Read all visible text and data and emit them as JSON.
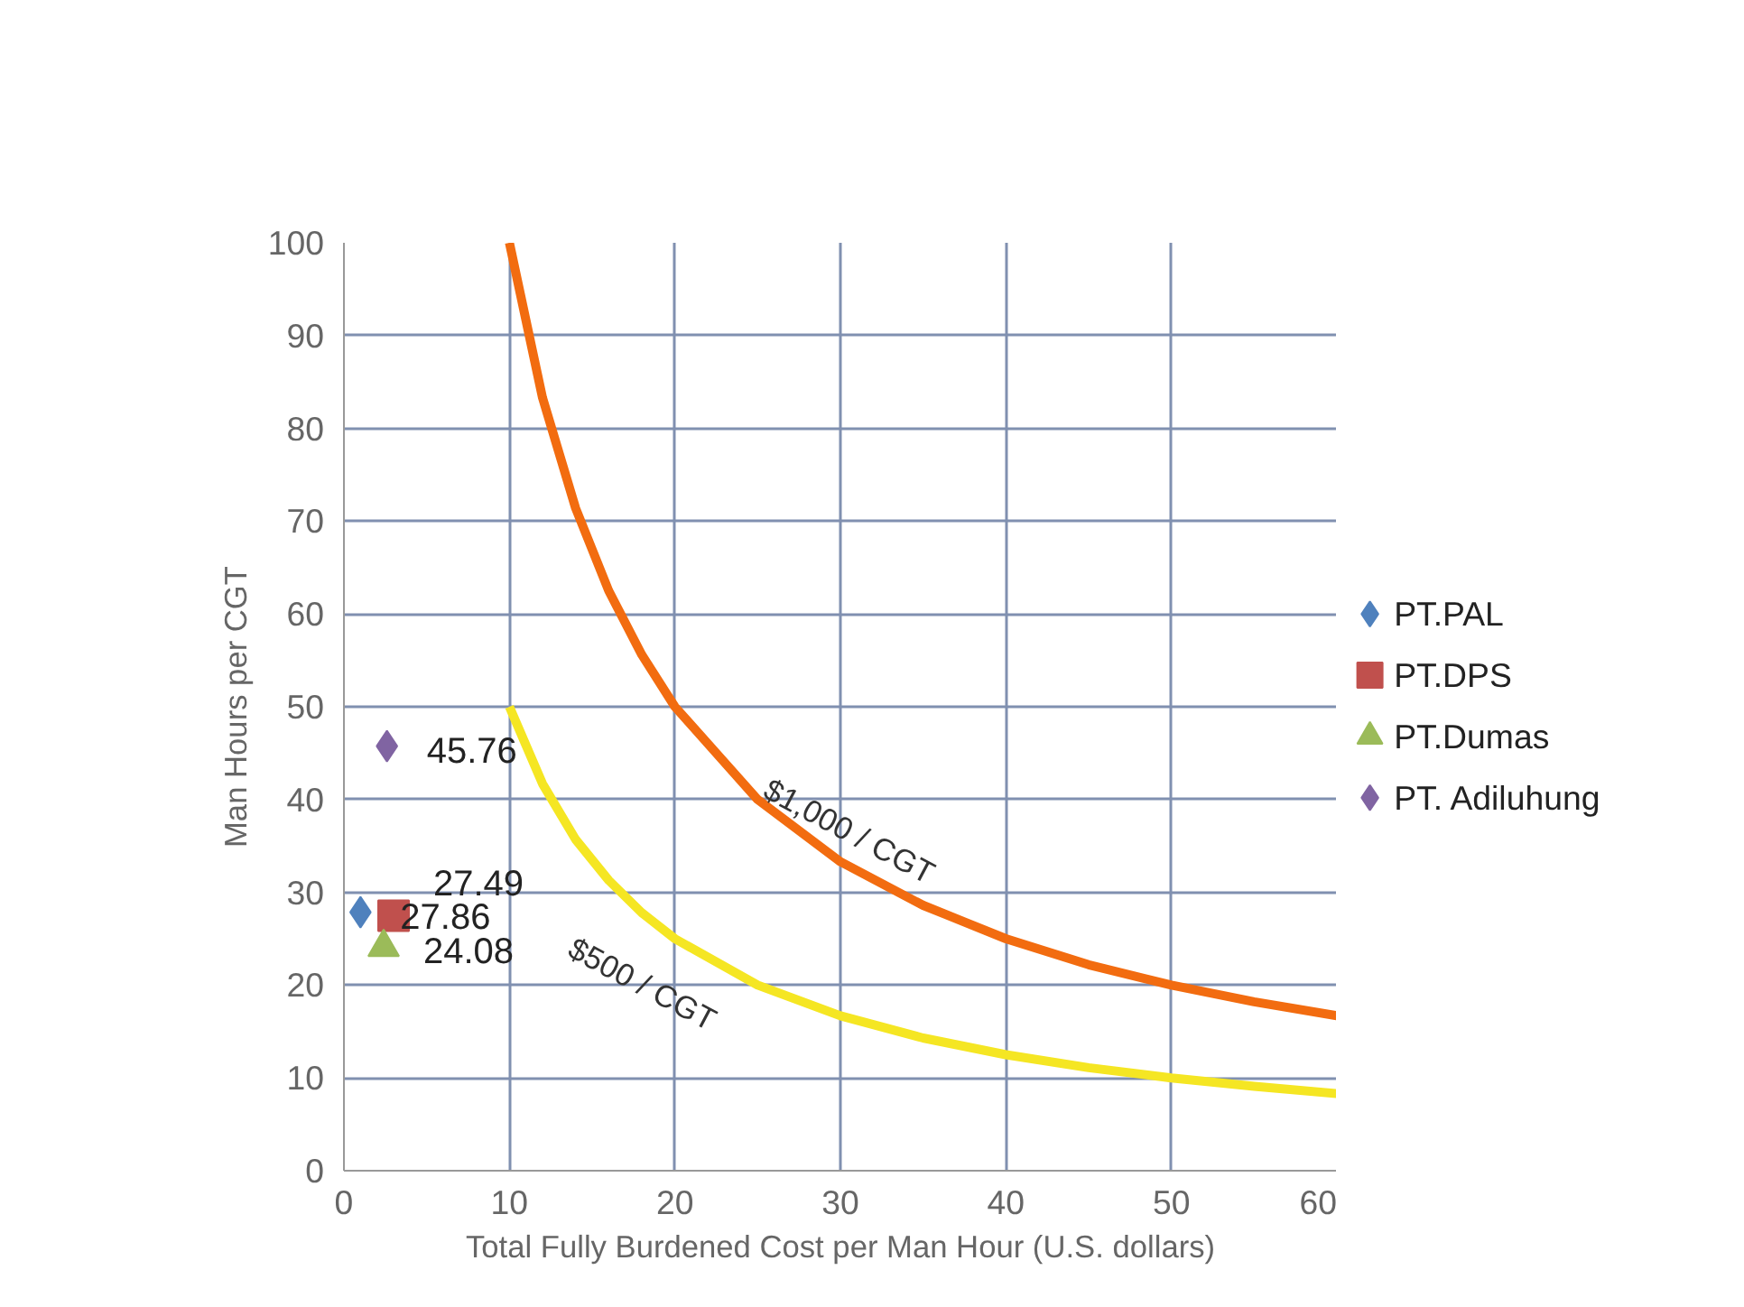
{
  "chart_data": {
    "type": "scatter",
    "xlabel": "Total Fully Burdened Cost per Man Hour (U.S. dollars)",
    "ylabel": "Man Hours per CGT",
    "xlim": [
      0,
      60
    ],
    "xticks": [
      0,
      10,
      20,
      30,
      40,
      50,
      60
    ],
    "ylim": [
      0,
      100
    ],
    "yticks": [
      0,
      10,
      20,
      30,
      40,
      50,
      60,
      70,
      80,
      90,
      100
    ],
    "grid": true,
    "legend": "right",
    "series": [
      {
        "name": "PT.PAL",
        "color": "#4f81bd",
        "marker": "diamond",
        "x": [
          1
        ],
        "values": [
          27.86
        ],
        "value_labels": [
          "27.86"
        ]
      },
      {
        "name": "PT.DPS",
        "color": "#c0504d",
        "marker": "square",
        "x": [
          3
        ],
        "values": [
          27.49
        ],
        "value_labels": [
          "27.49"
        ]
      },
      {
        "name": "PT.Dumas",
        "color": "#9bbb59",
        "marker": "triangle",
        "x": [
          2.4
        ],
        "values": [
          24.08
        ],
        "value_labels": [
          "24.08"
        ]
      },
      {
        "name": "PT. Adiluhung",
        "color": "#8064a2",
        "marker": "diamond",
        "x": [
          2.6
        ],
        "values": [
          45.76
        ],
        "value_labels": [
          "45.76"
        ]
      },
      {
        "type": "line",
        "color": "#f26c10",
        "x": [
          10,
          12,
          14,
          16,
          18,
          20,
          25,
          30,
          35,
          40,
          45,
          50,
          55,
          60
        ],
        "values": [
          100,
          83.3,
          71.4,
          62.5,
          55.6,
          50,
          40,
          33.3,
          28.6,
          25,
          22.2,
          20,
          18.2,
          16.7
        ]
      },
      {
        "type": "line",
        "color": "#f5e623",
        "x": [
          10,
          12,
          14,
          16,
          18,
          20,
          25,
          30,
          35,
          40,
          45,
          50,
          55,
          60
        ],
        "values": [
          50,
          41.7,
          35.7,
          31.3,
          27.8,
          25,
          20,
          16.7,
          14.3,
          12.5,
          11.1,
          10,
          9.1,
          8.3
        ]
      }
    ],
    "annotations": [
      {
        "text": "$1,000 / CGT",
        "x": 30,
        "y": 33.3
      },
      {
        "text": "$500 / CGT",
        "x": 20,
        "y": 25
      }
    ]
  }
}
